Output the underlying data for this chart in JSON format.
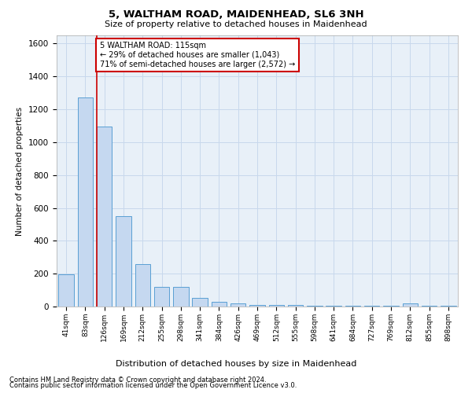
{
  "title": "5, WALTHAM ROAD, MAIDENHEAD, SL6 3NH",
  "subtitle": "Size of property relative to detached houses in Maidenhead",
  "xlabel": "Distribution of detached houses by size in Maidenhead",
  "ylabel": "Number of detached properties",
  "categories": [
    "41sqm",
    "83sqm",
    "126sqm",
    "169sqm",
    "212sqm",
    "255sqm",
    "298sqm",
    "341sqm",
    "384sqm",
    "426sqm",
    "469sqm",
    "512sqm",
    "555sqm",
    "598sqm",
    "641sqm",
    "684sqm",
    "727sqm",
    "769sqm",
    "812sqm",
    "855sqm",
    "898sqm"
  ],
  "values": [
    195,
    1270,
    1095,
    550,
    260,
    120,
    120,
    55,
    30,
    20,
    10,
    10,
    8,
    5,
    5,
    5,
    3,
    3,
    20,
    3,
    3
  ],
  "bar_color": "#c5d8f0",
  "bar_edge_color": "#5a9fd4",
  "vline_color": "#cc0000",
  "vline_x_idx": 2,
  "annotation_text": "5 WALTHAM ROAD: 115sqm\n← 29% of detached houses are smaller (1,043)\n71% of semi-detached houses are larger (2,572) →",
  "annotation_box_color": "#ffffff",
  "annotation_box_edge": "#cc0000",
  "ylim": [
    0,
    1650
  ],
  "yticks": [
    0,
    200,
    400,
    600,
    800,
    1000,
    1200,
    1400,
    1600
  ],
  "grid_color": "#c8d8ec",
  "footer1": "Contains HM Land Registry data © Crown copyright and database right 2024.",
  "footer2": "Contains public sector information licensed under the Open Government Licence v3.0.",
  "bg_color": "#e8f0f8"
}
